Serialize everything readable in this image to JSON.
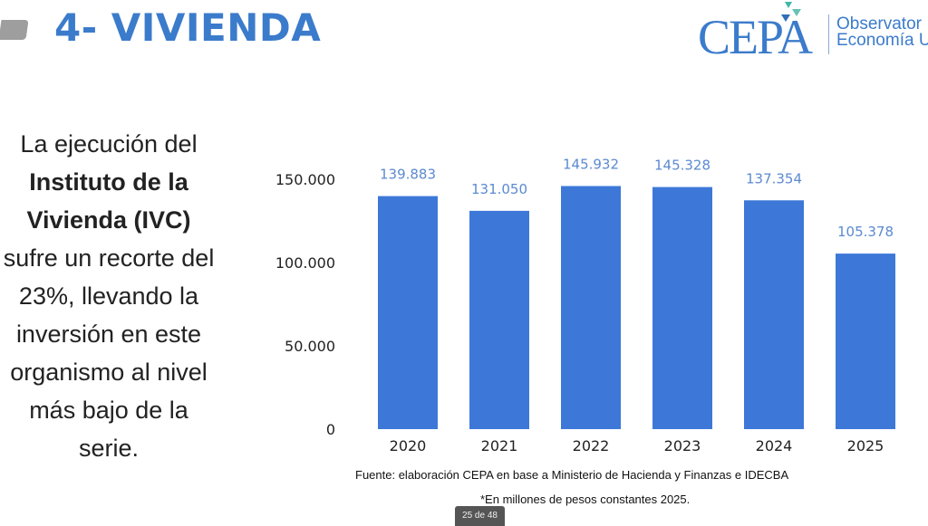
{
  "header": {
    "title": "4- VIVIENDA",
    "logo_text": "CEPA",
    "logo_sub_1": "Observator",
    "logo_sub_2": "Economía U"
  },
  "side_text": {
    "p1": "La ejecución del",
    "p2_bold": "Instituto de la Vivienda (IVC)",
    "p3": "sufre un recorte del 23%, llevando la inversión en este organismo al nivel más bajo de la serie."
  },
  "chart_data": {
    "type": "bar",
    "categories": [
      "2020",
      "2021",
      "2022",
      "2023",
      "2024",
      "2025"
    ],
    "values": [
      139883,
      131050,
      145932,
      145328,
      137354,
      105378
    ],
    "data_labels": [
      "139.883",
      "131.050",
      "145.932",
      "145.328",
      "137.354",
      "105.378"
    ],
    "yticks": [
      0,
      50000,
      100000,
      150000
    ],
    "ytick_labels": [
      "0",
      "50.000",
      "100.000",
      "150.000"
    ],
    "ylim": [
      0,
      150000
    ],
    "grid": false,
    "bar_color": "#3d78d8",
    "label_color": "#5b8ad0"
  },
  "footer": {
    "source": "Fuente: elaboración CEPA en base a Ministerio de Hacienda y Finanzas e IDECBA",
    "note": "*En millones de pesos constantes 2025.",
    "page": "25 de 48"
  }
}
